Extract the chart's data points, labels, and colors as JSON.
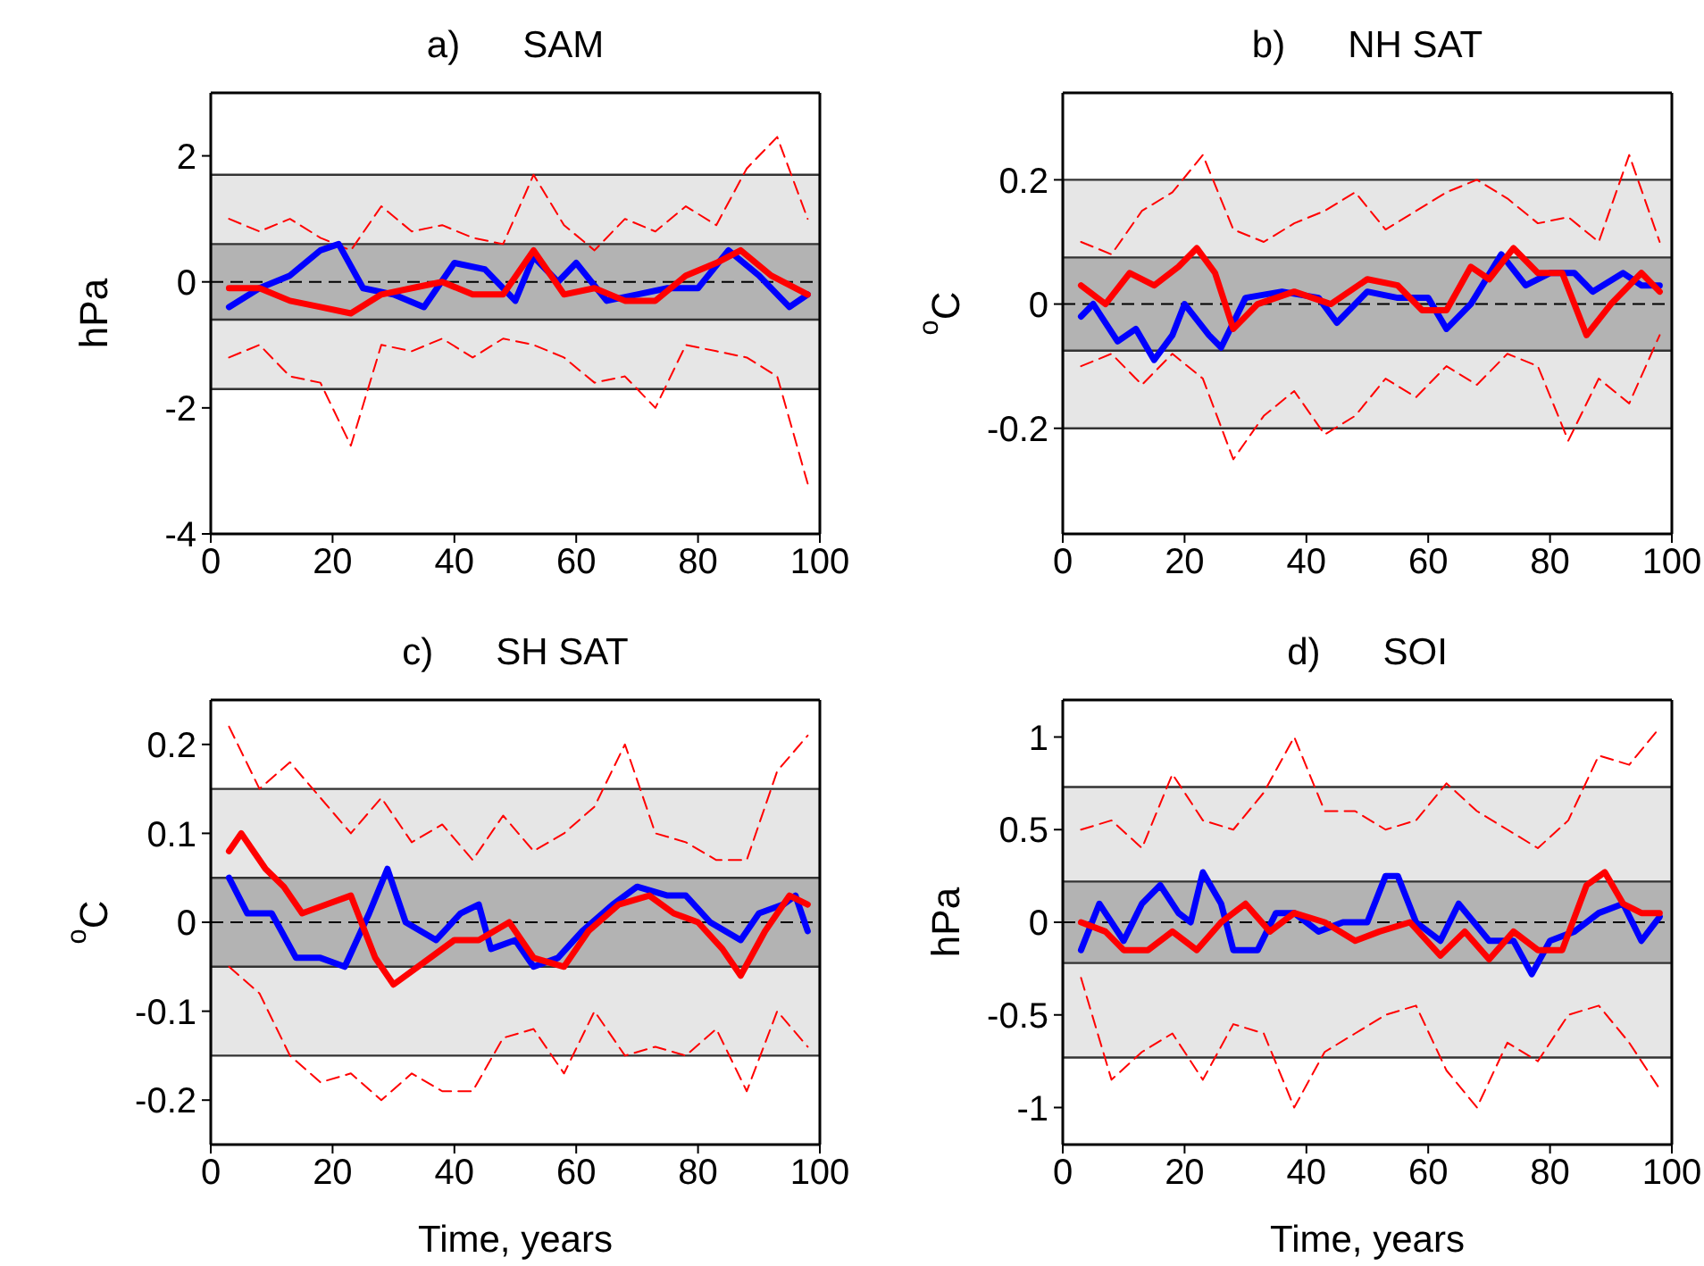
{
  "chart_data": [
    {
      "type": "line",
      "title": "a)      SAM",
      "ylabel": "hPa",
      "xlim": [
        0,
        100
      ],
      "xticks": [
        0,
        20,
        40,
        60,
        80,
        100
      ],
      "ylim": [
        -4,
        3
      ],
      "yticks": [
        -4,
        -2,
        0,
        2
      ],
      "grid": false,
      "legend": false,
      "bands": [
        {
          "axis": "y",
          "from": -1.7,
          "to": 1.7,
          "color": "#e6e6e6"
        },
        {
          "axis": "y",
          "from": -0.6,
          "to": 0.6,
          "color": "#b3b3b3"
        }
      ],
      "ref_lines": [
        {
          "axis": "y",
          "value": 0,
          "line_style": "dashed",
          "color": "#000000"
        }
      ],
      "series": [
        {
          "color": "#ff0000",
          "line_style": "dashed",
          "x": [
            3,
            8,
            13,
            18,
            23,
            28,
            33,
            38,
            43,
            48,
            53,
            58,
            63,
            68,
            73,
            78,
            83,
            88,
            93,
            98
          ],
          "values": [
            1.0,
            0.8,
            1.0,
            0.7,
            0.5,
            1.2,
            0.8,
            0.9,
            0.7,
            0.6,
            1.7,
            0.9,
            0.5,
            1.0,
            0.8,
            1.2,
            0.9,
            1.8,
            2.3,
            1.0
          ]
        },
        {
          "color": "#ff0000",
          "line_style": "dashed",
          "x": [
            3,
            8,
            13,
            18,
            23,
            28,
            33,
            38,
            43,
            48,
            53,
            58,
            63,
            68,
            73,
            78,
            83,
            88,
            93,
            98
          ],
          "values": [
            -1.2,
            -1.0,
            -1.5,
            -1.6,
            -2.6,
            -1.0,
            -1.1,
            -0.9,
            -1.2,
            -0.9,
            -1.0,
            -1.2,
            -1.6,
            -1.5,
            -2.0,
            -1.0,
            -1.1,
            -1.2,
            -1.5,
            -3.2
          ]
        },
        {
          "color": "#0000ff",
          "line_style": "solid",
          "x": [
            3,
            8,
            13,
            18,
            21,
            25,
            30,
            35,
            40,
            45,
            50,
            53,
            57,
            60,
            65,
            70,
            75,
            80,
            85,
            90,
            95,
            98
          ],
          "values": [
            -0.4,
            -0.1,
            0.1,
            0.5,
            0.6,
            -0.1,
            -0.2,
            -0.4,
            0.3,
            0.2,
            -0.3,
            0.4,
            0.0,
            0.3,
            -0.3,
            -0.2,
            -0.1,
            -0.1,
            0.5,
            0.1,
            -0.4,
            -0.2
          ]
        },
        {
          "color": "#ff0000",
          "line_style": "solid",
          "x": [
            3,
            8,
            13,
            18,
            23,
            28,
            33,
            38,
            43,
            48,
            53,
            58,
            63,
            68,
            73,
            78,
            83,
            87,
            92,
            98
          ],
          "values": [
            -0.1,
            -0.1,
            -0.3,
            -0.4,
            -0.5,
            -0.2,
            -0.1,
            0.0,
            -0.2,
            -0.2,
            0.5,
            -0.2,
            -0.1,
            -0.3,
            -0.3,
            0.1,
            0.3,
            0.5,
            0.1,
            -0.2
          ]
        }
      ]
    },
    {
      "type": "line",
      "title": "b)      NH SAT",
      "ylabel": "$^{o}$C",
      "xlim": [
        0,
        100
      ],
      "xticks": [
        0,
        20,
        40,
        60,
        80,
        100
      ],
      "ylim": [
        -0.37,
        0.34
      ],
      "yticks": [
        -0.2,
        0,
        0.2
      ],
      "grid": false,
      "legend": false,
      "bands": [
        {
          "axis": "y",
          "from": -0.2,
          "to": 0.2,
          "color": "#e6e6e6"
        },
        {
          "axis": "y",
          "from": -0.075,
          "to": 0.075,
          "color": "#b3b3b3"
        }
      ],
      "ref_lines": [
        {
          "axis": "y",
          "value": 0,
          "line_style": "dashed",
          "color": "#000000"
        }
      ],
      "series": [
        {
          "color": "#ff0000",
          "line_style": "dashed",
          "x": [
            3,
            8,
            13,
            18,
            23,
            28,
            33,
            38,
            43,
            48,
            53,
            58,
            63,
            68,
            73,
            78,
            83,
            88,
            93,
            98
          ],
          "values": [
            0.1,
            0.08,
            0.15,
            0.18,
            0.24,
            0.12,
            0.1,
            0.13,
            0.15,
            0.18,
            0.12,
            0.15,
            0.18,
            0.2,
            0.17,
            0.13,
            0.14,
            0.1,
            0.24,
            0.1
          ]
        },
        {
          "color": "#ff0000",
          "line_style": "dashed",
          "x": [
            3,
            8,
            13,
            18,
            23,
            28,
            33,
            38,
            43,
            48,
            53,
            58,
            63,
            68,
            73,
            78,
            83,
            88,
            93,
            98
          ],
          "values": [
            -0.1,
            -0.08,
            -0.13,
            -0.08,
            -0.12,
            -0.25,
            -0.18,
            -0.14,
            -0.21,
            -0.18,
            -0.12,
            -0.15,
            -0.1,
            -0.13,
            -0.08,
            -0.1,
            -0.22,
            -0.12,
            -0.16,
            -0.05
          ]
        },
        {
          "color": "#0000ff",
          "line_style": "solid",
          "x": [
            3,
            5,
            9,
            12,
            15,
            18,
            20,
            24,
            26,
            30,
            36,
            42,
            45,
            50,
            55,
            60,
            63,
            67,
            72,
            76,
            80,
            84,
            87,
            92,
            95,
            98
          ],
          "values": [
            -0.02,
            0.0,
            -0.06,
            -0.04,
            -0.09,
            -0.05,
            0.0,
            -0.05,
            -0.07,
            0.01,
            0.02,
            0.01,
            -0.03,
            0.02,
            0.01,
            0.01,
            -0.04,
            0.0,
            0.08,
            0.03,
            0.05,
            0.05,
            0.02,
            0.05,
            0.03,
            0.03
          ]
        },
        {
          "color": "#ff0000",
          "line_style": "solid",
          "x": [
            3,
            7,
            11,
            15,
            19,
            22,
            25,
            28,
            32,
            38,
            44,
            50,
            55,
            59,
            63,
            67,
            70,
            74,
            78,
            82,
            86,
            90,
            95,
            98
          ],
          "values": [
            0.03,
            0.0,
            0.05,
            0.03,
            0.06,
            0.09,
            0.05,
            -0.04,
            0.0,
            0.02,
            0.0,
            0.04,
            0.03,
            -0.01,
            -0.01,
            0.06,
            0.04,
            0.09,
            0.05,
            0.05,
            -0.05,
            0.0,
            0.05,
            0.02
          ]
        }
      ]
    },
    {
      "type": "line",
      "title": "c)      SH SAT",
      "xlabel": "Time, years",
      "ylabel": "$^{o}$C",
      "xlim": [
        0,
        100
      ],
      "xticks": [
        0,
        20,
        40,
        60,
        80,
        100
      ],
      "ylim": [
        -0.25,
        0.25
      ],
      "yticks": [
        -0.2,
        -0.1,
        0,
        0.1,
        0.2
      ],
      "grid": false,
      "legend": false,
      "bands": [
        {
          "axis": "y",
          "from": -0.15,
          "to": 0.15,
          "color": "#e6e6e6"
        },
        {
          "axis": "y",
          "from": -0.05,
          "to": 0.05,
          "color": "#b3b3b3"
        }
      ],
      "ref_lines": [
        {
          "axis": "y",
          "value": 0,
          "line_style": "dashed",
          "color": "#000000"
        }
      ],
      "series": [
        {
          "color": "#ff0000",
          "line_style": "dashed",
          "x": [
            3,
            8,
            13,
            18,
            23,
            28,
            33,
            38,
            43,
            48,
            53,
            58,
            63,
            68,
            73,
            78,
            83,
            88,
            93,
            98
          ],
          "values": [
            0.22,
            0.15,
            0.18,
            0.14,
            0.1,
            0.14,
            0.09,
            0.11,
            0.07,
            0.12,
            0.08,
            0.1,
            0.13,
            0.2,
            0.1,
            0.09,
            0.07,
            0.07,
            0.17,
            0.21
          ]
        },
        {
          "color": "#ff0000",
          "line_style": "dashed",
          "x": [
            3,
            8,
            13,
            18,
            23,
            28,
            33,
            38,
            43,
            48,
            53,
            58,
            63,
            68,
            73,
            78,
            83,
            88,
            93,
            98
          ],
          "values": [
            -0.05,
            -0.08,
            -0.15,
            -0.18,
            -0.17,
            -0.2,
            -0.17,
            -0.19,
            -0.19,
            -0.13,
            -0.12,
            -0.17,
            -0.1,
            -0.15,
            -0.14,
            -0.15,
            -0.12,
            -0.19,
            -0.1,
            -0.14
          ]
        },
        {
          "color": "#0000ff",
          "line_style": "solid",
          "x": [
            3,
            6,
            10,
            14,
            18,
            22,
            26,
            29,
            32,
            37,
            41,
            44,
            46,
            50,
            53,
            57,
            61,
            66,
            70,
            75,
            78,
            82,
            87,
            90,
            94,
            96,
            98
          ],
          "values": [
            0.05,
            0.01,
            0.01,
            -0.04,
            -0.04,
            -0.05,
            0.01,
            0.06,
            0.0,
            -0.02,
            0.01,
            0.02,
            -0.03,
            -0.02,
            -0.05,
            -0.04,
            -0.01,
            0.02,
            0.04,
            0.03,
            0.03,
            0.0,
            -0.02,
            0.01,
            0.02,
            0.03,
            -0.01
          ]
        },
        {
          "color": "#ff0000",
          "line_style": "solid",
          "x": [
            3,
            5,
            9,
            12,
            15,
            19,
            23,
            27,
            30,
            34,
            40,
            44,
            49,
            53,
            58,
            62,
            67,
            72,
            76,
            80,
            84,
            87,
            91,
            95,
            98
          ],
          "values": [
            0.08,
            0.1,
            0.06,
            0.04,
            0.01,
            0.02,
            0.03,
            -0.04,
            -0.07,
            -0.05,
            -0.02,
            -0.02,
            0.0,
            -0.04,
            -0.05,
            -0.01,
            0.02,
            0.03,
            0.01,
            0.0,
            -0.03,
            -0.06,
            -0.01,
            0.03,
            0.02
          ]
        }
      ]
    },
    {
      "type": "line",
      "title": "d)      SOI",
      "xlabel": "Time, years",
      "ylabel": "hPa",
      "xlim": [
        0,
        100
      ],
      "xticks": [
        0,
        20,
        40,
        60,
        80,
        100
      ],
      "ylim": [
        -1.2,
        1.2
      ],
      "yticks": [
        -1,
        -0.5,
        0,
        0.5,
        1
      ],
      "grid": false,
      "legend": false,
      "bands": [
        {
          "axis": "y",
          "from": -0.73,
          "to": 0.73,
          "color": "#e6e6e6"
        },
        {
          "axis": "y",
          "from": -0.22,
          "to": 0.22,
          "color": "#b3b3b3"
        }
      ],
      "ref_lines": [
        {
          "axis": "y",
          "value": 0,
          "line_style": "dashed",
          "color": "#000000"
        }
      ],
      "series": [
        {
          "color": "#ff0000",
          "line_style": "dashed",
          "x": [
            3,
            8,
            13,
            18,
            23,
            28,
            33,
            38,
            43,
            48,
            53,
            58,
            63,
            68,
            73,
            78,
            83,
            88,
            93,
            98
          ],
          "values": [
            0.5,
            0.55,
            0.4,
            0.8,
            0.55,
            0.5,
            0.7,
            1.0,
            0.6,
            0.6,
            0.5,
            0.55,
            0.75,
            0.6,
            0.5,
            0.4,
            0.55,
            0.9,
            0.85,
            1.05
          ]
        },
        {
          "color": "#ff0000",
          "line_style": "dashed",
          "x": [
            3,
            8,
            13,
            18,
            23,
            28,
            33,
            38,
            43,
            48,
            53,
            58,
            63,
            68,
            73,
            78,
            83,
            88,
            93,
            98
          ],
          "values": [
            -0.3,
            -0.85,
            -0.7,
            -0.6,
            -0.85,
            -0.55,
            -0.6,
            -1.0,
            -0.7,
            -0.6,
            -0.5,
            -0.45,
            -0.8,
            -1.0,
            -0.65,
            -0.75,
            -0.5,
            -0.45,
            -0.65,
            -0.9
          ]
        },
        {
          "color": "#0000ff",
          "line_style": "solid",
          "x": [
            3,
            6,
            10,
            13,
            16,
            19,
            21,
            23,
            26,
            28,
            32,
            35,
            38,
            42,
            46,
            50,
            53,
            55,
            58,
            62,
            65,
            70,
            74,
            77,
            80,
            84,
            88,
            92,
            95,
            98
          ],
          "values": [
            -0.15,
            0.1,
            -0.1,
            0.1,
            0.2,
            0.05,
            0.0,
            0.27,
            0.1,
            -0.15,
            -0.15,
            0.05,
            0.05,
            -0.05,
            0.0,
            0.0,
            0.25,
            0.25,
            0.0,
            -0.1,
            0.1,
            -0.1,
            -0.1,
            -0.28,
            -0.1,
            -0.05,
            0.05,
            0.1,
            -0.1,
            0.03
          ]
        },
        {
          "color": "#ff0000",
          "line_style": "solid",
          "x": [
            3,
            7,
            10,
            14,
            18,
            22,
            26,
            30,
            34,
            38,
            43,
            48,
            52,
            57,
            62,
            66,
            70,
            74,
            78,
            82,
            86,
            89,
            92,
            95,
            98
          ],
          "values": [
            0.0,
            -0.05,
            -0.15,
            -0.15,
            -0.05,
            -0.15,
            0.0,
            0.1,
            -0.05,
            0.05,
            0.0,
            -0.1,
            -0.05,
            0.0,
            -0.18,
            -0.05,
            -0.2,
            -0.05,
            -0.15,
            -0.15,
            0.2,
            0.27,
            0.1,
            0.05,
            0.05
          ]
        }
      ]
    }
  ]
}
